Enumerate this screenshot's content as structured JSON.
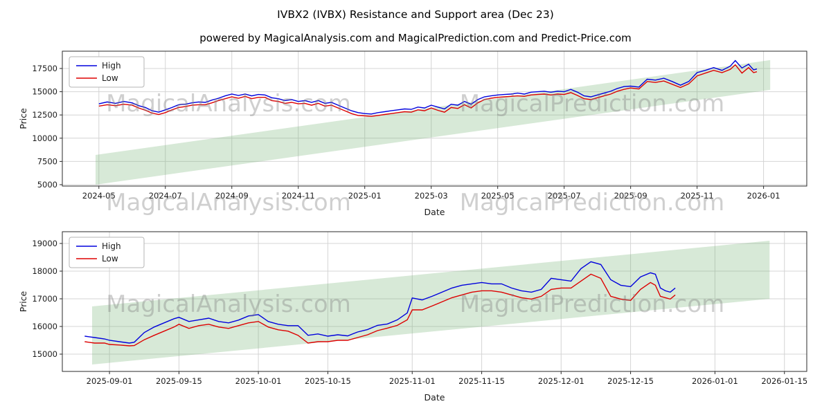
{
  "title": "IVBX2 (IVBX) Resistance and Support area (Dec 23)",
  "subtitle": "powered by MagicalAnalysis.com and MagicalPrediction.com and Predict-Price.com",
  "colors": {
    "high_line": "#0000dd",
    "low_line": "#dd0000",
    "band_fill": "rgba(110,175,110,0.28)",
    "grid": "#d4d4d4",
    "spine": "#2a2a2a",
    "tick_text": "#1a1a1a"
  },
  "watermark": {
    "left_text": "MagicalAnalysis.com",
    "right_text": "MagicalPrediction.com"
  },
  "chart_data": [
    {
      "type": "line",
      "title": "",
      "xlabel": "Date",
      "ylabel": "Price",
      "legend_position": "upper left",
      "grid": true,
      "xlim": [
        -1.1,
        21.3
      ],
      "ylim": [
        4850,
        19360
      ],
      "yticks": [
        5000,
        7500,
        10000,
        12500,
        15000,
        17500
      ],
      "xticks": [
        {
          "x": 0,
          "label": "2024-05"
        },
        {
          "x": 2,
          "label": "2024-07"
        },
        {
          "x": 4,
          "label": "2024-09"
        },
        {
          "x": 6,
          "label": "2024-11"
        },
        {
          "x": 8,
          "label": "2025-01"
        },
        {
          "x": 10,
          "label": "2025-03"
        },
        {
          "x": 12,
          "label": "2025-05"
        },
        {
          "x": 14,
          "label": "2025-07"
        },
        {
          "x": 16,
          "label": "2025-09"
        },
        {
          "x": 18,
          "label": "2025-11"
        },
        {
          "x": 20,
          "label": "2026-01"
        }
      ],
      "band": {
        "x": [
          -0.1,
          20.2
        ],
        "y_bottom": [
          5000,
          15200
        ],
        "y_top": [
          8200,
          18400
        ]
      },
      "series": [
        {
          "name": "High",
          "color_key": "high_line"
        },
        {
          "name": "Low",
          "color_key": "low_line"
        }
      ],
      "points": [
        [
          0,
          13700,
          13450
        ],
        [
          0.25,
          13900,
          13600
        ],
        [
          0.5,
          13750,
          13500
        ],
        [
          0.75,
          13950,
          13650
        ],
        [
          1,
          13800,
          13550
        ],
        [
          1.2,
          13500,
          13250
        ],
        [
          1.4,
          13300,
          13000
        ],
        [
          1.6,
          12950,
          12700
        ],
        [
          1.8,
          12800,
          12550
        ],
        [
          2,
          13050,
          12750
        ],
        [
          2.2,
          13300,
          13050
        ],
        [
          2.4,
          13600,
          13300
        ],
        [
          2.6,
          13650,
          13400
        ],
        [
          2.8,
          13800,
          13550
        ],
        [
          3,
          13900,
          13600
        ],
        [
          3.2,
          13850,
          13600
        ],
        [
          3.4,
          14100,
          13800
        ],
        [
          3.6,
          14300,
          14050
        ],
        [
          3.8,
          14550,
          14250
        ],
        [
          4,
          14750,
          14450
        ],
        [
          4.2,
          14600,
          14300
        ],
        [
          4.4,
          14750,
          14500
        ],
        [
          4.6,
          14550,
          14250
        ],
        [
          4.8,
          14700,
          14400
        ],
        [
          5,
          14650,
          14400
        ],
        [
          5.2,
          14350,
          14050
        ],
        [
          5.4,
          14250,
          13950
        ],
        [
          5.6,
          14050,
          13750
        ],
        [
          5.8,
          14150,
          13850
        ],
        [
          6,
          13950,
          13700
        ],
        [
          6.2,
          14050,
          13750
        ],
        [
          6.4,
          13850,
          13550
        ],
        [
          6.6,
          14050,
          13750
        ],
        [
          6.8,
          13750,
          13450
        ],
        [
          7,
          13850,
          13550
        ],
        [
          7.2,
          13550,
          13250
        ],
        [
          7.4,
          13250,
          12950
        ],
        [
          7.6,
          12950,
          12650
        ],
        [
          7.8,
          12750,
          12450
        ],
        [
          8,
          12650,
          12400
        ],
        [
          8.2,
          12600,
          12350
        ],
        [
          8.4,
          12750,
          12450
        ],
        [
          8.6,
          12850,
          12550
        ],
        [
          8.8,
          12950,
          12650
        ],
        [
          9,
          13050,
          12750
        ],
        [
          9.2,
          13150,
          12850
        ],
        [
          9.4,
          13100,
          12800
        ],
        [
          9.6,
          13350,
          13050
        ],
        [
          9.8,
          13250,
          12950
        ],
        [
          10,
          13550,
          13250
        ],
        [
          10.2,
          13350,
          13000
        ],
        [
          10.4,
          13150,
          12800
        ],
        [
          10.6,
          13650,
          13300
        ],
        [
          10.8,
          13550,
          13200
        ],
        [
          11,
          13950,
          13600
        ],
        [
          11.2,
          13650,
          13250
        ],
        [
          11.4,
          14150,
          13800
        ],
        [
          11.6,
          14450,
          14150
        ],
        [
          11.8,
          14550,
          14300
        ],
        [
          12,
          14650,
          14400
        ],
        [
          12.2,
          14700,
          14450
        ],
        [
          12.4,
          14750,
          14500
        ],
        [
          12.6,
          14850,
          14550
        ],
        [
          12.8,
          14750,
          14500
        ],
        [
          13,
          14950,
          14650
        ],
        [
          13.2,
          15000,
          14700
        ],
        [
          13.4,
          15050,
          14750
        ],
        [
          13.6,
          14950,
          14650
        ],
        [
          13.8,
          15050,
          14750
        ],
        [
          14,
          15000,
          14700
        ],
        [
          14.2,
          15250,
          14900
        ],
        [
          14.4,
          14950,
          14600
        ],
        [
          14.6,
          14550,
          14250
        ],
        [
          14.8,
          14450,
          14150
        ],
        [
          15,
          14650,
          14350
        ],
        [
          15.2,
          14850,
          14550
        ],
        [
          15.4,
          15050,
          14750
        ],
        [
          15.6,
          15350,
          15050
        ],
        [
          15.8,
          15550,
          15250
        ],
        [
          16,
          15600,
          15400
        ],
        [
          16.25,
          15500,
          15300
        ],
        [
          16.5,
          16350,
          16100
        ],
        [
          16.75,
          16250,
          16000
        ],
        [
          17,
          16450,
          16150
        ],
        [
          17.25,
          16100,
          15800
        ],
        [
          17.5,
          15700,
          15450
        ],
        [
          17.75,
          16100,
          15850
        ],
        [
          18,
          17050,
          16700
        ],
        [
          18.25,
          17300,
          17000
        ],
        [
          18.5,
          17600,
          17300
        ],
        [
          18.75,
          17300,
          17050
        ],
        [
          19,
          17750,
          17400
        ],
        [
          19.15,
          18350,
          17900
        ],
        [
          19.35,
          17550,
          17000
        ],
        [
          19.55,
          17950,
          17600
        ],
        [
          19.7,
          17350,
          17050
        ],
        [
          19.8,
          17450,
          17150
        ]
      ]
    },
    {
      "type": "line",
      "title": "",
      "xlabel": "Date",
      "ylabel": "Price",
      "legend_position": "upper left",
      "grid": true,
      "xlim": [
        -9.5,
        140.5
      ],
      "ylim": [
        14375,
        19425
      ],
      "yticks": [
        15000,
        16000,
        17000,
        18000,
        19000
      ],
      "xticks": [
        {
          "x": 0,
          "label": "2025-09-01"
        },
        {
          "x": 14,
          "label": "2025-09-15"
        },
        {
          "x": 30,
          "label": "2025-10-01"
        },
        {
          "x": 44,
          "label": "2025-10-15"
        },
        {
          "x": 61,
          "label": "2025-11-01"
        },
        {
          "x": 75,
          "label": "2025-11-15"
        },
        {
          "x": 91,
          "label": "2025-12-01"
        },
        {
          "x": 105,
          "label": "2025-12-15"
        },
        {
          "x": 122,
          "label": "2026-01-01"
        },
        {
          "x": 136,
          "label": "2026-01-15"
        }
      ],
      "band": {
        "x": [
          -3.5,
          133
        ],
        "y_bottom": [
          14625,
          17000
        ],
        "y_top": [
          16725,
          19100
        ]
      },
      "series": [
        {
          "name": "High",
          "color_key": "high_line"
        },
        {
          "name": "Low",
          "color_key": "low_line"
        }
      ],
      "points": [
        [
          -5,
          15650,
          15450
        ],
        [
          -3,
          15600,
          15400
        ],
        [
          -1,
          15550,
          15400
        ],
        [
          0,
          15500,
          15350
        ],
        [
          2,
          15450,
          15330
        ],
        [
          4,
          15400,
          15300
        ],
        [
          5,
          15430,
          15310
        ],
        [
          7,
          15780,
          15520
        ],
        [
          9,
          15980,
          15680
        ],
        [
          11,
          16130,
          15830
        ],
        [
          13,
          16280,
          15980
        ],
        [
          14,
          16330,
          16080
        ],
        [
          16,
          16180,
          15930
        ],
        [
          18,
          16240,
          16030
        ],
        [
          20,
          16300,
          16080
        ],
        [
          22,
          16180,
          15980
        ],
        [
          24,
          16130,
          15930
        ],
        [
          26,
          16230,
          16030
        ],
        [
          28,
          16380,
          16130
        ],
        [
          30,
          16430,
          16180
        ],
        [
          32,
          16180,
          15980
        ],
        [
          34,
          16080,
          15880
        ],
        [
          36,
          16030,
          15830
        ],
        [
          38,
          16030,
          15680
        ],
        [
          40,
          15680,
          15400
        ],
        [
          42,
          15730,
          15450
        ],
        [
          44,
          15650,
          15450
        ],
        [
          46,
          15700,
          15500
        ],
        [
          48,
          15660,
          15500
        ],
        [
          50,
          15800,
          15600
        ],
        [
          52,
          15890,
          15700
        ],
        [
          54,
          16040,
          15850
        ],
        [
          56,
          16090,
          15940
        ],
        [
          58,
          16240,
          16040
        ],
        [
          60,
          16490,
          16240
        ],
        [
          61,
          17030,
          16600
        ],
        [
          63,
          16960,
          16600
        ],
        [
          65,
          17090,
          16740
        ],
        [
          67,
          17240,
          16890
        ],
        [
          69,
          17390,
          17040
        ],
        [
          71,
          17490,
          17140
        ],
        [
          73,
          17540,
          17240
        ],
        [
          75,
          17590,
          17290
        ],
        [
          77,
          17540,
          17290
        ],
        [
          79,
          17540,
          17240
        ],
        [
          81,
          17390,
          17140
        ],
        [
          83,
          17290,
          17040
        ],
        [
          85,
          17240,
          16990
        ],
        [
          87,
          17340,
          17090
        ],
        [
          89,
          17740,
          17340
        ],
        [
          91,
          17690,
          17390
        ],
        [
          93,
          17640,
          17390
        ],
        [
          95,
          18090,
          17640
        ],
        [
          97,
          18340,
          17890
        ],
        [
          99,
          18240,
          17740
        ],
        [
          101,
          17690,
          17090
        ],
        [
          103,
          17490,
          16990
        ],
        [
          105,
          17440,
          16940
        ],
        [
          107,
          17790,
          17340
        ],
        [
          109,
          17940,
          17590
        ],
        [
          110,
          17890,
          17490
        ],
        [
          111,
          17390,
          17090
        ],
        [
          112,
          17290,
          17040
        ],
        [
          113,
          17240,
          16990
        ],
        [
          114,
          17390,
          17140
        ]
      ]
    }
  ]
}
